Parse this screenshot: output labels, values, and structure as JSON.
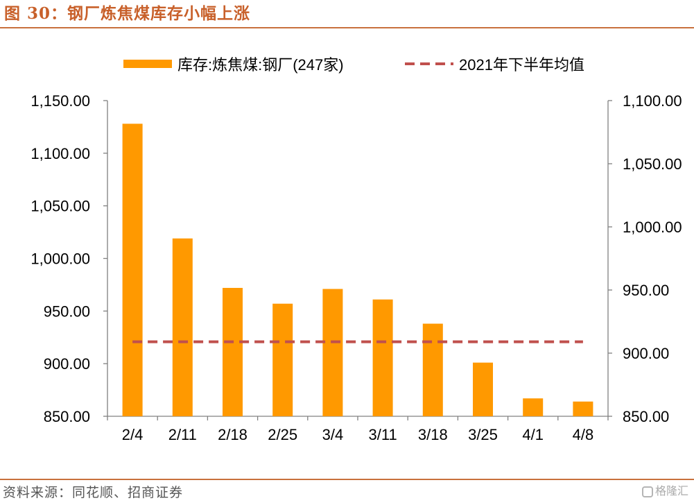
{
  "page": {
    "title": "图 30：钢厂炼焦煤库存小幅上涨",
    "source": "资料来源：同花顺、招商证券",
    "watermark": "格隆汇"
  },
  "colors": {
    "title": "#c8602a",
    "rule": "#c8703c",
    "bar": "#ff9900",
    "avg_line": "#c0504d",
    "axis": "#808080"
  },
  "chart_data": {
    "type": "bar",
    "categories": [
      "2/4",
      "2/11",
      "2/18",
      "2/25",
      "3/4",
      "3/11",
      "3/18",
      "3/25",
      "4/1",
      "4/8"
    ],
    "series": [
      {
        "name": "库存:炼焦煤:钢厂(247家)",
        "type": "bar",
        "axis": "left",
        "values": [
          1128,
          1019,
          972,
          957,
          971,
          961,
          938,
          901,
          867,
          864
        ]
      },
      {
        "name": "2021年下半年均值",
        "type": "line",
        "style": "dashed",
        "axis": "right",
        "values": [
          909,
          909,
          909,
          909,
          909,
          909,
          909,
          909,
          909,
          909
        ]
      }
    ],
    "y_left": {
      "ylim": [
        850,
        1150
      ],
      "ticks": [
        "850.00",
        "900.00",
        "950.00",
        "1,000.00",
        "1,050.00",
        "1,100.00",
        "1,150.00"
      ]
    },
    "y_right": {
      "ylim": [
        850,
        1100
      ],
      "ticks": [
        "850.00",
        "900.00",
        "950.00",
        "1,000.00",
        "1,050.00",
        "1,100.00"
      ]
    },
    "legend": "top",
    "grid": false
  }
}
